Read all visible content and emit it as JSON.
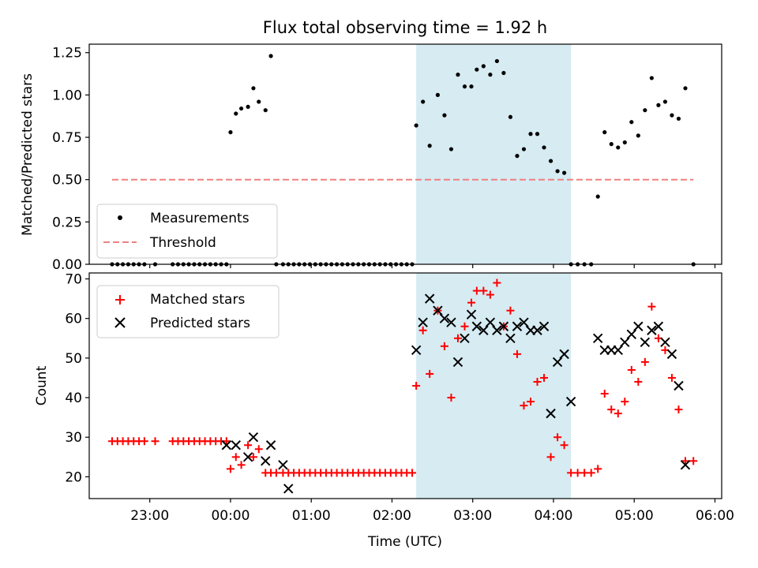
{
  "figure_title": "Flux total observing time = 1.92 h",
  "colors": {
    "shade": "#add8e6",
    "threshold": "#f08080",
    "matched": "#ff0000",
    "predicted": "#000000",
    "measurement": "#000000"
  },
  "chart_data": [
    {
      "type": "scatter",
      "title": "Flux total observing time = 1.92 h",
      "xlabel": "",
      "ylabel": "Matched/Predicted stars",
      "xlim": [
        "22:15",
        "06:05"
      ],
      "ylim": [
        0,
        1.3
      ],
      "yticks": [
        0.0,
        0.25,
        0.5,
        0.75,
        1.0,
        1.25
      ],
      "ytick_labels": [
        "0.00",
        "0.25",
        "0.50",
        "0.75",
        "1.00",
        "1.25"
      ],
      "grid": false,
      "legend": "lower-left",
      "shaded_span": [
        "02:18",
        "04:13"
      ],
      "series": [
        {
          "name": "Measurements",
          "kind": "points",
          "x": [
            "22:32",
            "22:36",
            "22:40",
            "22:44",
            "22:48",
            "22:52",
            "22:56",
            "23:04",
            "23:17",
            "23:21",
            "23:25",
            "23:29",
            "23:33",
            "23:37",
            "23:41",
            "23:45",
            "23:49",
            "23:53",
            "23:57",
            "00:00",
            "00:04",
            "00:08",
            "00:13",
            "00:17",
            "00:21",
            "00:26",
            "00:30",
            "00:34",
            "00:39",
            "00:43",
            "00:47",
            "00:51",
            "00:55",
            "00:59",
            "01:03",
            "01:07",
            "01:11",
            "01:15",
            "01:19",
            "01:23",
            "01:27",
            "01:31",
            "01:35",
            "01:39",
            "01:43",
            "01:47",
            "01:51",
            "01:55",
            "01:59",
            "02:03",
            "02:07",
            "02:11",
            "02:15",
            "02:18",
            "02:23",
            "02:28",
            "02:34",
            "02:39",
            "02:44",
            "02:49",
            "02:54",
            "02:59",
            "03:03",
            "03:08",
            "03:13",
            "03:18",
            "03:23",
            "03:28",
            "03:33",
            "03:38",
            "03:43",
            "03:48",
            "03:53",
            "03:58",
            "04:03",
            "04:08",
            "04:13",
            "04:18",
            "04:23",
            "04:28",
            "04:33",
            "04:38",
            "04:43",
            "04:48",
            "04:53",
            "04:58",
            "05:03",
            "05:08",
            "05:13",
            "05:18",
            "05:23",
            "05:28",
            "05:33",
            "05:38",
            "05:44"
          ],
          "y": [
            0,
            0,
            0,
            0,
            0,
            0,
            0,
            0,
            0,
            0,
            0,
            0,
            0,
            0,
            0,
            0,
            0,
            0,
            0,
            0.78,
            0.89,
            0.92,
            0.93,
            1.04,
            0.96,
            0.91,
            1.23,
            0,
            0,
            0,
            0,
            0,
            0,
            0,
            0,
            0,
            0,
            0,
            0,
            0,
            0,
            0,
            0,
            0,
            0,
            0,
            0,
            0,
            0,
            0,
            0,
            0,
            0,
            0.82,
            0.96,
            0.7,
            1.0,
            0.88,
            0.68,
            1.12,
            1.05,
            1.05,
            1.15,
            1.17,
            1.12,
            1.2,
            1.13,
            0.87,
            0.64,
            0.68,
            0.77,
            0.77,
            0.69,
            0.61,
            0.55,
            0.54,
            0,
            0,
            0,
            0,
            0.4,
            0.78,
            0.71,
            0.69,
            0.72,
            0.84,
            0.76,
            0.91,
            1.1,
            0.94,
            0.96,
            0.88,
            0.86,
            1.04,
            0
          ]
        },
        {
          "name": "Threshold",
          "kind": "dashed-line",
          "x": [
            "22:32",
            "05:44"
          ],
          "y": [
            0.5,
            0.5
          ]
        }
      ]
    },
    {
      "type": "scatter",
      "title": "",
      "xlabel": "Time (UTC)",
      "ylabel": "Count",
      "xlim": [
        "22:15",
        "06:05"
      ],
      "ylim": [
        14.5,
        71.5
      ],
      "yticks": [
        20,
        30,
        40,
        50,
        60,
        70
      ],
      "xticks": [
        "23:00",
        "00:00",
        "01:00",
        "02:00",
        "03:00",
        "04:00",
        "05:00",
        "06:00"
      ],
      "grid": false,
      "legend": "top-left",
      "shaded_span": [
        "02:18",
        "04:13"
      ],
      "series": [
        {
          "name": "Matched stars",
          "marker": "plus",
          "x": [
            "22:32",
            "22:36",
            "22:40",
            "22:44",
            "22:48",
            "22:52",
            "22:56",
            "23:04",
            "23:17",
            "23:21",
            "23:25",
            "23:29",
            "23:33",
            "23:37",
            "23:41",
            "23:45",
            "23:49",
            "23:53",
            "23:57",
            "00:00",
            "00:04",
            "00:08",
            "00:13",
            "00:17",
            "00:21",
            "00:26",
            "00:30",
            "00:34",
            "00:39",
            "00:43",
            "00:47",
            "00:51",
            "00:55",
            "00:59",
            "01:03",
            "01:07",
            "01:11",
            "01:15",
            "01:19",
            "01:23",
            "01:27",
            "01:31",
            "01:35",
            "01:39",
            "01:43",
            "01:47",
            "01:51",
            "01:55",
            "01:59",
            "02:03",
            "02:07",
            "02:11",
            "02:15",
            "02:18",
            "02:23",
            "02:28",
            "02:34",
            "02:39",
            "02:44",
            "02:49",
            "02:54",
            "02:59",
            "03:03",
            "03:08",
            "03:13",
            "03:18",
            "03:23",
            "03:28",
            "03:33",
            "03:38",
            "03:43",
            "03:48",
            "03:53",
            "03:58",
            "04:03",
            "04:08",
            "04:13",
            "04:18",
            "04:23",
            "04:28",
            "04:33",
            "04:38",
            "04:43",
            "04:48",
            "04:53",
            "04:58",
            "05:03",
            "05:08",
            "05:13",
            "05:18",
            "05:23",
            "05:28",
            "05:33",
            "05:38",
            "05:44"
          ],
          "y": [
            29,
            29,
            29,
            29,
            29,
            29,
            29,
            29,
            29,
            29,
            29,
            29,
            29,
            29,
            29,
            29,
            29,
            29,
            29,
            22,
            25,
            23,
            28,
            25,
            27,
            21,
            21,
            21,
            21,
            21,
            21,
            21,
            21,
            21,
            21,
            21,
            21,
            21,
            21,
            21,
            21,
            21,
            21,
            21,
            21,
            21,
            21,
            21,
            21,
            21,
            21,
            21,
            21,
            43,
            57,
            46,
            62,
            53,
            40,
            55,
            58,
            64,
            67,
            67,
            66,
            69,
            58,
            62,
            51,
            38,
            39,
            44,
            45,
            25,
            30,
            28,
            21,
            21,
            21,
            21,
            22,
            41,
            37,
            36,
            39,
            47,
            44,
            49,
            63,
            55,
            52,
            45,
            37,
            24,
            24
          ]
        },
        {
          "name": "Predicted stars",
          "marker": "x",
          "x": [
            "23:57",
            "00:04",
            "00:13",
            "00:17",
            "00:26",
            "00:30",
            "00:39",
            "00:43",
            "02:18",
            "02:23",
            "02:28",
            "02:34",
            "02:39",
            "02:44",
            "02:49",
            "02:54",
            "02:59",
            "03:03",
            "03:08",
            "03:13",
            "03:18",
            "03:23",
            "03:28",
            "03:33",
            "03:38",
            "03:43",
            "03:48",
            "03:53",
            "03:58",
            "04:03",
            "04:08",
            "04:13",
            "04:33",
            "04:38",
            "04:43",
            "04:48",
            "04:53",
            "04:58",
            "05:03",
            "05:08",
            "05:13",
            "05:18",
            "05:23",
            "05:28",
            "05:33",
            "05:38"
          ],
          "y": [
            28,
            28,
            25,
            30,
            24,
            28,
            23,
            17,
            52,
            59,
            65,
            62,
            60,
            59,
            49,
            55,
            61,
            58,
            57,
            59,
            57,
            58,
            55,
            58,
            59,
            57,
            57,
            58,
            36,
            49,
            51,
            39,
            55,
            52,
            52,
            52,
            54,
            56,
            58,
            54,
            57,
            58,
            54,
            51,
            43,
            23
          ]
        }
      ]
    }
  ]
}
